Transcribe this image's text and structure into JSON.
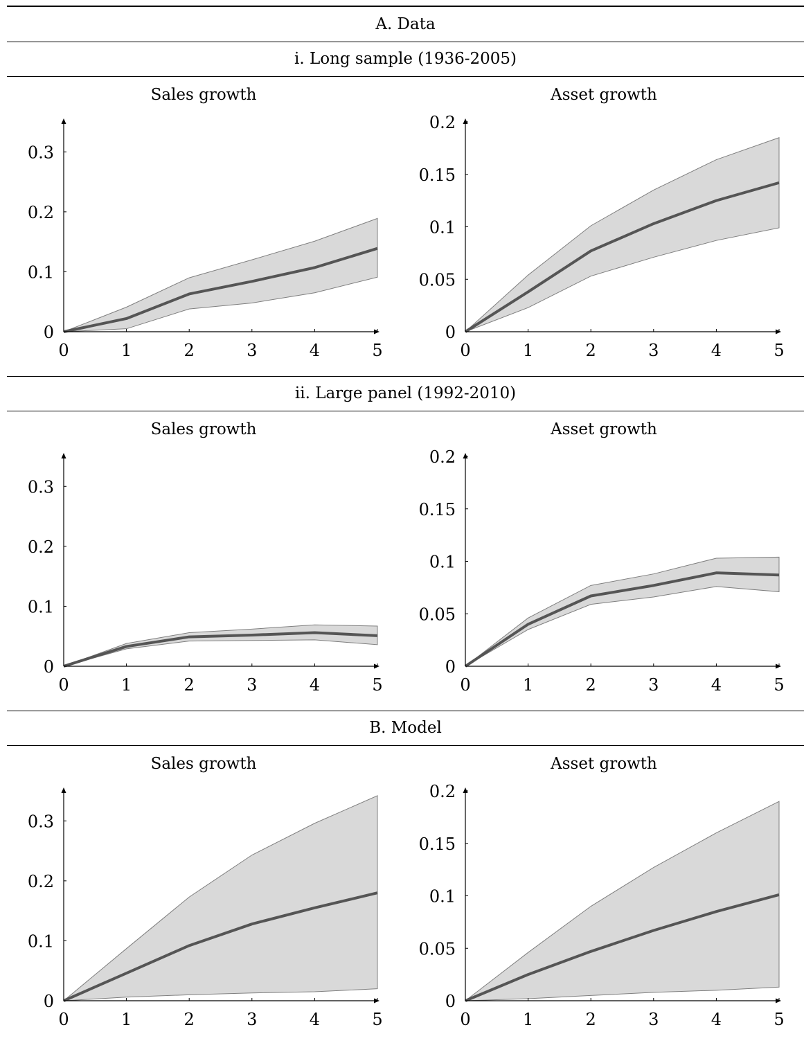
{
  "sections": [
    {
      "heading": "A. Data"
    },
    {
      "heading": "i. Long sample (1936-2005)"
    },
    {
      "heading": "ii. Large panel (1992-2010)"
    },
    {
      "heading": "B. Model"
    }
  ],
  "chart_data": [
    {
      "type": "area",
      "title": "Sales growth",
      "panel": "i. Long sample (1936-2005)",
      "x": [
        0,
        1,
        2,
        3,
        4,
        5
      ],
      "xticks": [
        "0",
        "1",
        "2",
        "3",
        "4",
        "5"
      ],
      "yticks": [
        0,
        0.1,
        0.2,
        0.3
      ],
      "ytick_labels": [
        "0",
        "0.1",
        "0.2",
        "0.3"
      ],
      "xlim": [
        0,
        5
      ],
      "ylim": [
        0,
        0.35
      ],
      "series": [
        {
          "values": [
            0,
            0.022,
            0.063,
            0.084,
            0.107,
            0.139
          ],
          "lower": [
            0,
            0.005,
            0.038,
            0.048,
            0.065,
            0.091
          ],
          "upper": [
            0,
            0.041,
            0.09,
            0.12,
            0.151,
            0.189
          ]
        }
      ]
    },
    {
      "type": "area",
      "title": "Asset growth",
      "panel": "i. Long sample (1936-2005)",
      "x": [
        0,
        1,
        2,
        3,
        4,
        5
      ],
      "xticks": [
        "0",
        "1",
        "2",
        "3",
        "4",
        "5"
      ],
      "yticks": [
        0,
        0.05,
        0.1,
        0.15,
        0.2
      ],
      "ytick_labels": [
        "0",
        "0.05",
        "0.1",
        "0.15",
        "0.2"
      ],
      "xlim": [
        0,
        5
      ],
      "ylim": [
        0,
        0.2
      ],
      "series": [
        {
          "values": [
            0,
            0.038,
            0.077,
            0.103,
            0.125,
            0.142
          ],
          "lower": [
            0,
            0.023,
            0.053,
            0.071,
            0.087,
            0.099
          ],
          "upper": [
            0,
            0.054,
            0.101,
            0.135,
            0.164,
            0.185
          ]
        }
      ]
    },
    {
      "type": "area",
      "title": "Sales growth",
      "panel": "ii. Large panel (1992-2010)",
      "x": [
        0,
        1,
        2,
        3,
        4,
        5
      ],
      "xticks": [
        "0",
        "1",
        "2",
        "3",
        "4",
        "5"
      ],
      "yticks": [
        0,
        0.1,
        0.2,
        0.3
      ],
      "ytick_labels": [
        "0",
        "0.1",
        "0.2",
        "0.3"
      ],
      "xlim": [
        0,
        5
      ],
      "ylim": [
        0,
        0.35
      ],
      "series": [
        {
          "values": [
            0,
            0.033,
            0.049,
            0.052,
            0.056,
            0.051
          ],
          "lower": [
            0,
            0.029,
            0.042,
            0.043,
            0.044,
            0.036
          ],
          "upper": [
            0,
            0.038,
            0.056,
            0.062,
            0.069,
            0.067
          ]
        }
      ]
    },
    {
      "type": "area",
      "title": "Asset growth",
      "panel": "ii. Large panel (1992-2010)",
      "x": [
        0,
        1,
        2,
        3,
        4,
        5
      ],
      "xticks": [
        "0",
        "1",
        "2",
        "3",
        "4",
        "5"
      ],
      "yticks": [
        0,
        0.05,
        0.1,
        0.15,
        0.2
      ],
      "ytick_labels": [
        "0",
        "0.05",
        "0.1",
        "0.15",
        "0.2"
      ],
      "xlim": [
        0,
        5
      ],
      "ylim": [
        0,
        0.2
      ],
      "series": [
        {
          "values": [
            0,
            0.04,
            0.067,
            0.077,
            0.089,
            0.087
          ],
          "lower": [
            0,
            0.035,
            0.059,
            0.066,
            0.076,
            0.071
          ],
          "upper": [
            0,
            0.046,
            0.077,
            0.088,
            0.103,
            0.104
          ]
        }
      ]
    },
    {
      "type": "area",
      "title": "Sales growth",
      "panel": "B. Model",
      "x": [
        0,
        1,
        2,
        3,
        4,
        5
      ],
      "xticks": [
        "0",
        "1",
        "2",
        "3",
        "4",
        "5"
      ],
      "yticks": [
        0,
        0.1,
        0.2,
        0.3
      ],
      "ytick_labels": [
        "0",
        "0.1",
        "0.2",
        "0.3"
      ],
      "xlim": [
        0,
        5
      ],
      "ylim": [
        0,
        0.35
      ],
      "series": [
        {
          "values": [
            0,
            0.046,
            0.092,
            0.128,
            0.155,
            0.18
          ],
          "lower": [
            0,
            0.006,
            0.01,
            0.013,
            0.015,
            0.02
          ],
          "upper": [
            0,
            0.087,
            0.173,
            0.243,
            0.296,
            0.342
          ]
        }
      ]
    },
    {
      "type": "area",
      "title": "Asset growth",
      "panel": "B. Model",
      "x": [
        0,
        1,
        2,
        3,
        4,
        5
      ],
      "xticks": [
        "0",
        "1",
        "2",
        "3",
        "4",
        "5"
      ],
      "yticks": [
        0,
        0.05,
        0.1,
        0.15,
        0.2
      ],
      "ytick_labels": [
        "0",
        "0.05",
        "0.1",
        "0.15",
        "0.2"
      ],
      "xlim": [
        0,
        5
      ],
      "ylim": [
        0,
        0.2
      ],
      "series": [
        {
          "values": [
            0,
            0.025,
            0.047,
            0.067,
            0.085,
            0.101
          ],
          "lower": [
            0,
            0.002,
            0.005,
            0.008,
            0.01,
            0.013
          ],
          "upper": [
            0,
            0.046,
            0.09,
            0.127,
            0.16,
            0.19
          ]
        }
      ]
    }
  ],
  "colors": {
    "band_fill": "#d9d9d9",
    "band_edge": "#7f7f7f",
    "line": "#555555",
    "axis": "#000000"
  }
}
